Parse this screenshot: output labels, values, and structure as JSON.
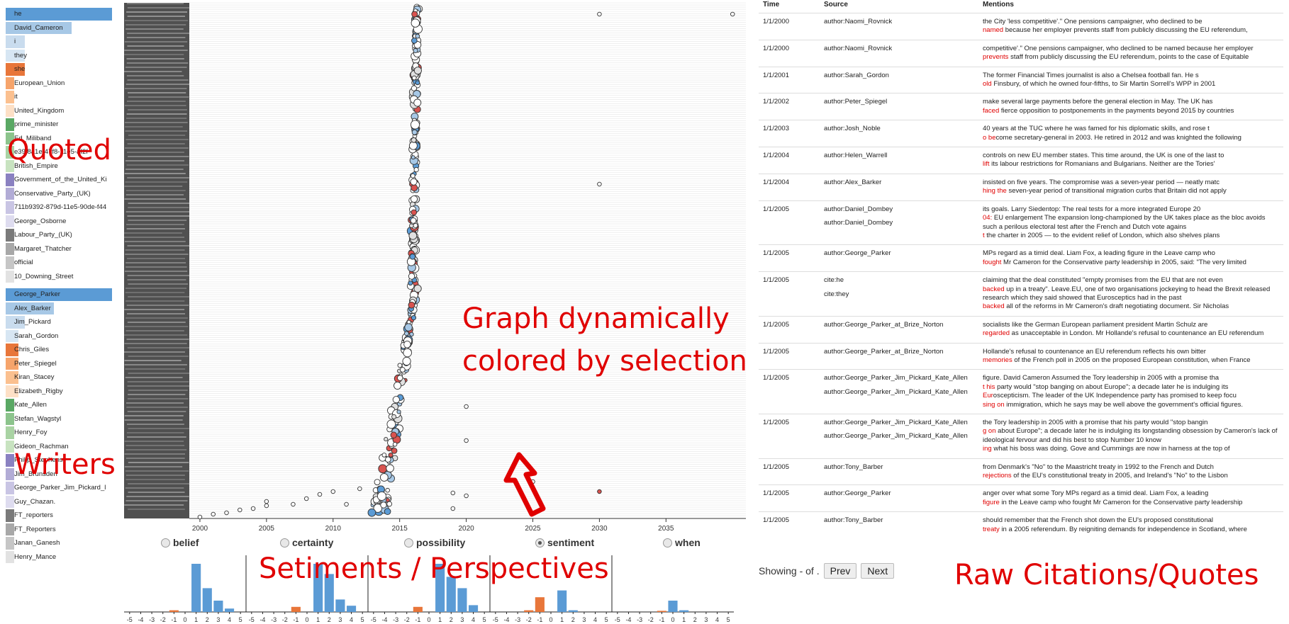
{
  "annotations": {
    "quoted": "Quoted",
    "writers": "Writers",
    "graph": "Graph dynamically\ncolored by selection",
    "sentiments": "Setiments / Perspectives",
    "raw": "Raw Citations/Quotes"
  },
  "quoted_list": [
    {
      "label": "he",
      "color": "#5b9bd5",
      "width": 1.0
    },
    {
      "label": "David_Cameron",
      "color": "#a7c8e6",
      "width": 0.62
    },
    {
      "label": "i",
      "color": "#c9dcee",
      "width": 0.18
    },
    {
      "label": "they",
      "color": "#d7e6f3",
      "width": 0.18
    },
    {
      "label": "she",
      "color": "#e8763a",
      "width": 0.18
    },
    {
      "label": "European_Union",
      "color": "#f6a46b",
      "width": 0.08
    },
    {
      "label": "it",
      "color": "#fbc08f",
      "width": 0.08
    },
    {
      "label": "United_Kingdom",
      "color": "#fde0c6",
      "width": 0.08
    },
    {
      "label": "prime_minister",
      "color": "#5aa864",
      "width": 0.08
    },
    {
      "label": "Ed_Miliband",
      "color": "#8cc48c",
      "width": 0.08
    },
    {
      "label": "e39f8a1e-47f8-11e5-af2f",
      "color": "#a9d3a3",
      "width": 0.08
    },
    {
      "label": "British_Empire",
      "color": "#c8e3c0",
      "width": 0.08
    },
    {
      "label": "Government_of_the_United_Ki",
      "color": "#8a81c1",
      "width": 0.08
    },
    {
      "label": "Conservative_Party_(UK)",
      "color": "#b2acd6",
      "width": 0.08
    },
    {
      "label": "711b9392-879d-11e5-90de-f44",
      "color": "#c9c5e4",
      "width": 0.08
    },
    {
      "label": "George_Osborne",
      "color": "#dedcef",
      "width": 0.08
    },
    {
      "label": "Labour_Party_(UK)",
      "color": "#7a7a7a",
      "width": 0.08
    },
    {
      "label": "Margaret_Thatcher",
      "color": "#a8a8a8",
      "width": 0.08
    },
    {
      "label": "official",
      "color": "#c6c6c6",
      "width": 0.08
    },
    {
      "label": "10_Downing_Street",
      "color": "#e2e2e2",
      "width": 0.08
    }
  ],
  "writers_list": [
    {
      "label": "George_Parker",
      "color": "#5b9bd5",
      "width": 1.0
    },
    {
      "label": "Alex_Barker",
      "color": "#a7c8e6",
      "width": 0.45
    },
    {
      "label": "Jim_Pickard",
      "color": "#c9dcee",
      "width": 0.18
    },
    {
      "label": "Sarah_Gordon",
      "color": "#d7e6f3",
      "width": 0.12
    },
    {
      "label": "Chris_Giles",
      "color": "#e8763a",
      "width": 0.12
    },
    {
      "label": "Peter_Spiegel",
      "color": "#f6a46b",
      "width": 0.12
    },
    {
      "label": "Kiran_Stacey",
      "color": "#fbc08f",
      "width": 0.12
    },
    {
      "label": "Elizabeth_Rigby",
      "color": "#fde0c6",
      "width": 0.12
    },
    {
      "label": "Kate_Allen",
      "color": "#5aa864",
      "width": 0.08
    },
    {
      "label": "Stefan_Wagstyl",
      "color": "#8cc48c",
      "width": 0.08
    },
    {
      "label": "Henry_Foy",
      "color": "#a9d3a3",
      "width": 0.08
    },
    {
      "label": "Gideon_Rachman",
      "color": "#c8e3c0",
      "width": 0.08
    },
    {
      "label": "Philip_Stephens",
      "color": "#8a81c1",
      "width": 0.08
    },
    {
      "label": "Jim_Brunsden",
      "color": "#b2acd6",
      "width": 0.08
    },
    {
      "label": "George_Parker_Jim_Pickard_l",
      "color": "#c9c5e4",
      "width": 0.08
    },
    {
      "label": "Guy_Chazan.",
      "color": "#dedcef",
      "width": 0.08
    },
    {
      "label": "FT_reporters",
      "color": "#7a7a7a",
      "width": 0.08
    },
    {
      "label": "FT_Reporters",
      "color": "#a8a8a8",
      "width": 0.08
    },
    {
      "label": "Janan_Ganesh",
      "color": "#c6c6c6",
      "width": 0.08
    },
    {
      "label": "Henry_Mance",
      "color": "#e2e2e2",
      "width": 0.08
    }
  ],
  "timeline": {
    "x_ticks": [
      "2000",
      "2005",
      "2010",
      "2015",
      "2020",
      "2025",
      "2030",
      "2035"
    ]
  },
  "perspectives": [
    {
      "label": "belief",
      "selected": false
    },
    {
      "label": "certainty",
      "selected": false
    },
    {
      "label": "possibility",
      "selected": false
    },
    {
      "label": "sentiment",
      "selected": true
    },
    {
      "label": "when",
      "selected": false
    }
  ],
  "chart_data": {
    "type": "bar",
    "title": "",
    "categories": [
      "-5",
      "-4",
      "-3",
      "-2",
      "-1",
      "0",
      "1",
      "2",
      "3",
      "4",
      "5"
    ],
    "series": [
      {
        "name": "belief",
        "values": [
          0,
          0,
          0,
          0,
          0.03,
          0,
          0.85,
          0.42,
          0.2,
          0.06,
          0
        ]
      },
      {
        "name": "certainty",
        "values": [
          0,
          0,
          0,
          0,
          0.09,
          0,
          0.85,
          0.67,
          0.22,
          0.11,
          0
        ]
      },
      {
        "name": "possibility",
        "values": [
          0,
          0,
          0,
          0,
          0.09,
          0,
          0.85,
          0.62,
          0.42,
          0.12,
          0
        ]
      },
      {
        "name": "sentiment",
        "values": [
          0,
          0,
          0,
          0.03,
          0.26,
          0,
          0.38,
          0.03,
          0,
          0,
          0
        ]
      },
      {
        "name": "when",
        "values": [
          0,
          0,
          0,
          0,
          0.02,
          0.2,
          0.03,
          0,
          0,
          0,
          0
        ]
      }
    ]
  },
  "table": {
    "headers": [
      "Time",
      "Source",
      "Mentions"
    ],
    "rows": [
      {
        "time": "1/1/2000",
        "sources": [
          "author:Naomi_Rovnick"
        ],
        "mention": [
          [
            "the City 'less competitive'.\" One pensions campaigner, who declined to be",
            false
          ],
          [
            "named",
            true
          ],
          [
            " because her employer prevents staff from publicly discussing the EU referendum,",
            false
          ]
        ]
      },
      {
        "time": "1/1/2000",
        "sources": [
          "author:Naomi_Rovnick"
        ],
        "mention": [
          [
            "competitive'.\" One pensions campaigner, who declined to be named because her employer",
            false
          ],
          [
            "prevents",
            true
          ],
          [
            " staff from publicly discussing the EU referendum, points to the case of Equitable",
            false
          ]
        ]
      },
      {
        "time": "1/1/2001",
        "sources": [
          "author:Sarah_Gordon"
        ],
        "mention": [
          [
            "The former Financial Times journalist is also a Chelsea football fan. He s",
            false
          ],
          [
            "old",
            true
          ],
          [
            " Finsbury, of which he owned four-fifths, to Sir Martin Sorrell's WPP in 2001",
            false
          ]
        ]
      },
      {
        "time": "1/1/2002",
        "sources": [
          "author:Peter_Spiegel"
        ],
        "mention": [
          [
            "make several large payments before the general election in May. The UK has",
            false
          ],
          [
            "faced",
            true
          ],
          [
            " fierce opposition to postponements in the payments beyond 2015 by countries",
            false
          ]
        ]
      },
      {
        "time": "1/1/2003",
        "sources": [
          "author:Josh_Noble"
        ],
        "mention": [
          [
            "40 years at the TUC where he was famed for his diplomatic skills, and rose t",
            false
          ],
          [
            "o be",
            true
          ],
          [
            "come secretary-general in 2003. He retired in 2012 and was knighted the following",
            false
          ]
        ]
      },
      {
        "time": "1/1/2004",
        "sources": [
          "author:Helen_Warrell"
        ],
        "mention": [
          [
            "controls on new EU member states. This time around, the UK is one of the last to",
            false
          ],
          [
            "lift",
            true
          ],
          [
            " its labour restrictions for Romanians and Bulgarians. Neither are the Tories'",
            false
          ]
        ]
      },
      {
        "time": "1/1/2004",
        "sources": [
          "author:Alex_Barker"
        ],
        "mention": [
          [
            "insisted on five years. The compromise was a seven-year period — neatly matc",
            false
          ],
          [
            "hing the",
            true
          ],
          [
            " seven-year period of transitional migration curbs that Britain did not apply",
            false
          ]
        ]
      },
      {
        "time": "1/1/2005",
        "sources": [
          "author:Daniel_Dombey",
          "author:Daniel_Dombey"
        ],
        "mention": [
          [
            "its goals. Larry Siedentop: The real tests for a more integrated Europe 20",
            false
          ],
          [
            "04:",
            true
          ],
          [
            " EU enlargement The expansion long-championed by the UK takes place as the bloc avoids such a perilous electoral test after the French and Dutch vote agains",
            false
          ],
          [
            "t",
            true
          ],
          [
            " the charter in 2005 — to the evident relief of London, which also shelves plans",
            false
          ]
        ]
      },
      {
        "time": "1/1/2005",
        "sources": [
          "author:George_Parker"
        ],
        "mention": [
          [
            "MPs regard as a timid deal. Liam Fox, a leading figure in the Leave camp who",
            false
          ],
          [
            "fought",
            true
          ],
          [
            " Mr Cameron for the Conservative party leadership in 2005, said: \"The very limited",
            false
          ]
        ]
      },
      {
        "time": "1/1/2005",
        "sources": [
          "cite:he",
          "cite:they"
        ],
        "mention": [
          [
            "claiming that the deal constituted \"empty promises from the EU that are not even",
            false
          ],
          [
            "backed",
            true
          ],
          [
            " up in a treaty\". Leave.EU, one of two organisations jockeying to head the Brexit released research which they said showed that Eurosceptics had in the past",
            false
          ],
          [
            "backed",
            true
          ],
          [
            " all of the reforms in Mr Cameron's draft negotiating document. Sir Nicholas",
            false
          ]
        ]
      },
      {
        "time": "1/1/2005",
        "sources": [
          "author:George_Parker_at_Brize_Norton"
        ],
        "mention": [
          [
            "socialists like the German European parliament president Martin Schulz are",
            false
          ],
          [
            "regarded",
            true
          ],
          [
            " as unacceptable in London. Mr Hollande's refusal to countenance an EU referendum",
            false
          ]
        ]
      },
      {
        "time": "1/1/2005",
        "sources": [
          "author:George_Parker_at_Brize_Norton"
        ],
        "mention": [
          [
            "Hollande's refusal to countenance an EU referendum reflects his own bitter",
            false
          ],
          [
            "memories",
            true
          ],
          [
            " of the French poll in 2005 on the proposed European constitution, when France",
            false
          ]
        ]
      },
      {
        "time": "1/1/2005",
        "sources": [
          "author:George_Parker_Jim_Pickard_Kate_Allen",
          "author:George_Parker_Jim_Pickard_Kate_Allen"
        ],
        "mention": [
          [
            "figure. David Cameron Assumed the Tory leadership in 2005 with a promise tha",
            false
          ],
          [
            "t his",
            true
          ],
          [
            " party would \"stop banging on about Europe\"; a decade later he is indulging its",
            false
          ],
          [
            "Eur",
            true
          ],
          [
            "oscepticism. The leader of the UK Independence party has promised to keep focu",
            false
          ],
          [
            "sing on",
            true
          ],
          [
            " immigration, which he says may be well above the government's official figures.",
            false
          ]
        ]
      },
      {
        "time": "1/1/2005",
        "sources": [
          "author:George_Parker_Jim_Pickard_Kate_Allen",
          "author:George_Parker_Jim_Pickard_Kate_Allen"
        ],
        "mention": [
          [
            "the Tory leadership in 2005 with a promise that his party would \"stop bangin",
            false
          ],
          [
            "g on",
            true
          ],
          [
            " about Europe\"; a decade later he is indulging its longstanding obsession by Cameron's lack of ideological fervour and did his best to stop Number 10 know",
            false
          ],
          [
            "ing",
            true
          ],
          [
            " what his boss was doing. Gove and Cummings are now in harness at the top of",
            false
          ]
        ]
      },
      {
        "time": "1/1/2005",
        "sources": [
          "author:Tony_Barber"
        ],
        "mention": [
          [
            "from Denmark's \"No\" to the Maastricht treaty in 1992 to the French and Dutch",
            false
          ],
          [
            "rejections",
            true
          ],
          [
            " of the EU's constitutional treaty in 2005, and Ireland's \"No\" to the Lisbon",
            false
          ]
        ]
      },
      {
        "time": "1/1/2005",
        "sources": [
          "author:George_Parker"
        ],
        "mention": [
          [
            "anger over what some Tory MPs regard as a timid deal. Liam Fox, a leading",
            false
          ],
          [
            "figure",
            true
          ],
          [
            " in the Leave camp who fought Mr Cameron for the Conservative party leadership",
            false
          ]
        ]
      },
      {
        "time": "1/1/2005",
        "sources": [
          "author:Tony_Barber"
        ],
        "mention": [
          [
            "should remember that the French shot down the EU's proposed constitutional",
            false
          ],
          [
            "treaty",
            true
          ],
          [
            " in a 2005 referendum. By reigniting demands for independence in Scotland, where",
            false
          ]
        ]
      }
    ]
  },
  "pager": {
    "showing": "Showing - of .",
    "prev": "Prev",
    "next": "Next"
  }
}
